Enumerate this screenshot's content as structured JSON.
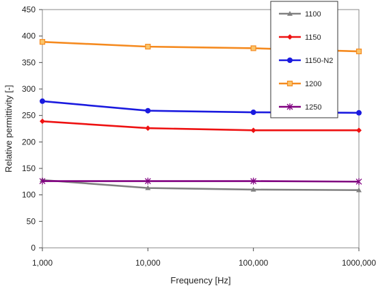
{
  "chart_data": {
    "type": "line",
    "xscale": "log",
    "x": [
      1000,
      10000,
      100000,
      1000000
    ],
    "xtick_labels": [
      "1,000",
      "10,000",
      "100,000",
      "1000,000"
    ],
    "xlabel": "Frequency [Hz]",
    "ylabel": "Relative permittivity [-]",
    "ylim": [
      0,
      450
    ],
    "yticks": [
      0,
      50,
      100,
      150,
      200,
      250,
      300,
      350,
      400,
      450
    ],
    "grid": false,
    "legend_position": "top-right",
    "series": [
      {
        "name": "1100",
        "color": "#808080",
        "marker": "triangle",
        "values": [
          128,
          113,
          110,
          109
        ]
      },
      {
        "name": "1150",
        "color": "#ee1111",
        "marker": "diamond",
        "values": [
          239,
          226,
          222,
          222
        ]
      },
      {
        "name": "1150-N2",
        "color": "#1a1adf",
        "marker": "circle",
        "values": [
          277,
          259,
          256,
          255
        ]
      },
      {
        "name": "1200",
        "color": "#f58a1f",
        "marker": "square",
        "values": [
          389,
          380,
          377,
          371
        ]
      },
      {
        "name": "1250",
        "color": "#800080",
        "marker": "star",
        "values": [
          126,
          126,
          126,
          125
        ]
      }
    ]
  }
}
